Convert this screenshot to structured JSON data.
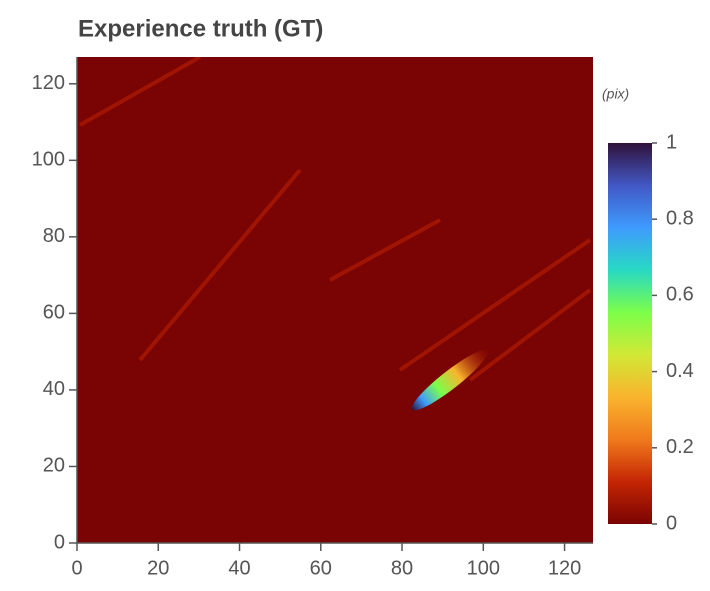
{
  "chart_data": {
    "type": "heatmap",
    "title": "Experience truth (GT)",
    "xlim": [
      0,
      127
    ],
    "xticks": [
      0,
      20,
      40,
      60,
      80,
      100,
      120
    ],
    "ylim": [
      0,
      127
    ],
    "yticks": [
      0,
      20,
      40,
      60,
      80,
      100,
      120
    ],
    "colorbar": {
      "label": "(pix)",
      "lim": [
        0,
        1
      ],
      "ticks": [
        0,
        0.2,
        0.4,
        0.6,
        0.8,
        1
      ],
      "colors": [
        "#7a0403",
        "#c42503",
        "#f07a1c",
        "#f9b42e",
        "#d2e935",
        "#7bfe4a",
        "#28d9c4",
        "#3e9bfe",
        "#4257c4",
        "#30123b"
      ]
    }
  }
}
